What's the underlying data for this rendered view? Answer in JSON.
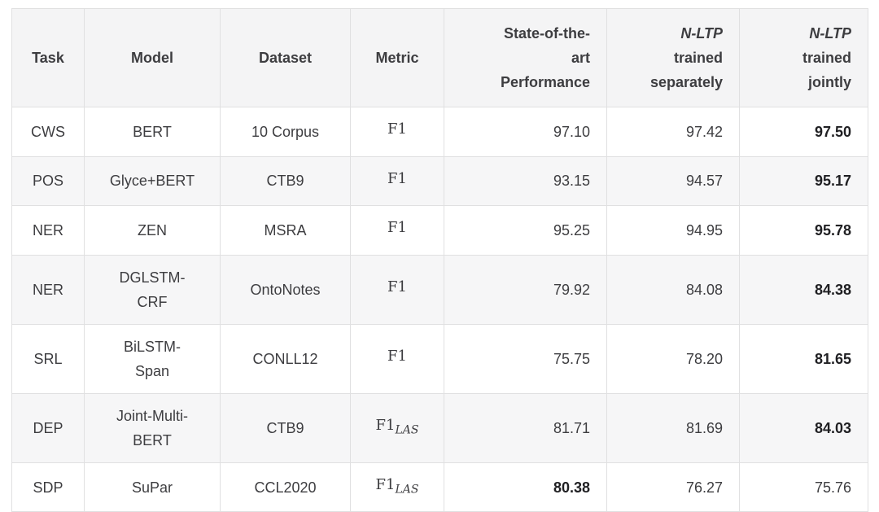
{
  "table": {
    "colors": {
      "page_background": "#ffffff",
      "header_background": "#f4f4f5",
      "stripe_background": "#f6f6f7",
      "border": "#e0e0e1",
      "text": "#3d3d40",
      "bold_text": "#202023"
    },
    "columns": [
      {
        "key": "task",
        "label": "Task"
      },
      {
        "key": "model",
        "label": "Model"
      },
      {
        "key": "dataset",
        "label": "Dataset"
      },
      {
        "key": "metric",
        "label": "Metric"
      },
      {
        "key": "sota",
        "label": "State-of-the-art Performance",
        "lines": [
          "State-of-the-",
          "art",
          "Performance"
        ]
      },
      {
        "key": "sep",
        "label": "N-LTP trained separately",
        "lines": [
          "N-LTP",
          "trained",
          "separately"
        ]
      },
      {
        "key": "joint",
        "label": "N-LTP trained jointly",
        "lines": [
          "N-LTP",
          "trained",
          "jointly"
        ]
      }
    ],
    "rows": [
      {
        "task": "CWS",
        "model": "BERT",
        "model_lines": [
          "BERT"
        ],
        "dataset": "10 Corpus",
        "metric": {
          "base": "F1",
          "sub": ""
        },
        "sota": "97.10",
        "sep": "97.42",
        "joint": "97.50",
        "best": "joint"
      },
      {
        "task": "POS",
        "model": "Glyce+BERT",
        "model_lines": [
          "Glyce+BERT"
        ],
        "dataset": "CTB9",
        "metric": {
          "base": "F1",
          "sub": ""
        },
        "sota": "93.15",
        "sep": "94.57",
        "joint": "95.17",
        "best": "joint"
      },
      {
        "task": "NER",
        "model": "ZEN",
        "model_lines": [
          "ZEN"
        ],
        "dataset": "MSRA",
        "metric": {
          "base": "F1",
          "sub": ""
        },
        "sota": "95.25",
        "sep": "94.95",
        "joint": "95.78",
        "best": "joint"
      },
      {
        "task": "NER",
        "model": "DGLSTM-CRF",
        "model_lines": [
          "DGLSTM-",
          "CRF"
        ],
        "dataset": "OntoNotes",
        "metric": {
          "base": "F1",
          "sub": ""
        },
        "sota": "79.92",
        "sep": "84.08",
        "joint": "84.38",
        "best": "joint"
      },
      {
        "task": "SRL",
        "model": "BiLSTM-Span",
        "model_lines": [
          "BiLSTM-",
          "Span"
        ],
        "dataset": "CONLL12",
        "metric": {
          "base": "F1",
          "sub": ""
        },
        "sota": "75.75",
        "sep": "78.20",
        "joint": "81.65",
        "best": "joint"
      },
      {
        "task": "DEP",
        "model": "Joint-Multi-BERT",
        "model_lines": [
          "Joint-Multi-",
          "BERT"
        ],
        "dataset": "CTB9",
        "metric": {
          "base": "F1",
          "sub": "LAS"
        },
        "sota": "81.71",
        "sep": "81.69",
        "joint": "84.03",
        "best": "joint"
      },
      {
        "task": "SDP",
        "model": "SuPar",
        "model_lines": [
          "SuPar"
        ],
        "dataset": "CCL2020",
        "metric": {
          "base": "F1",
          "sub": "LAS"
        },
        "sota": "80.38",
        "sep": "76.27",
        "joint": "75.76",
        "best": "sota"
      }
    ]
  }
}
